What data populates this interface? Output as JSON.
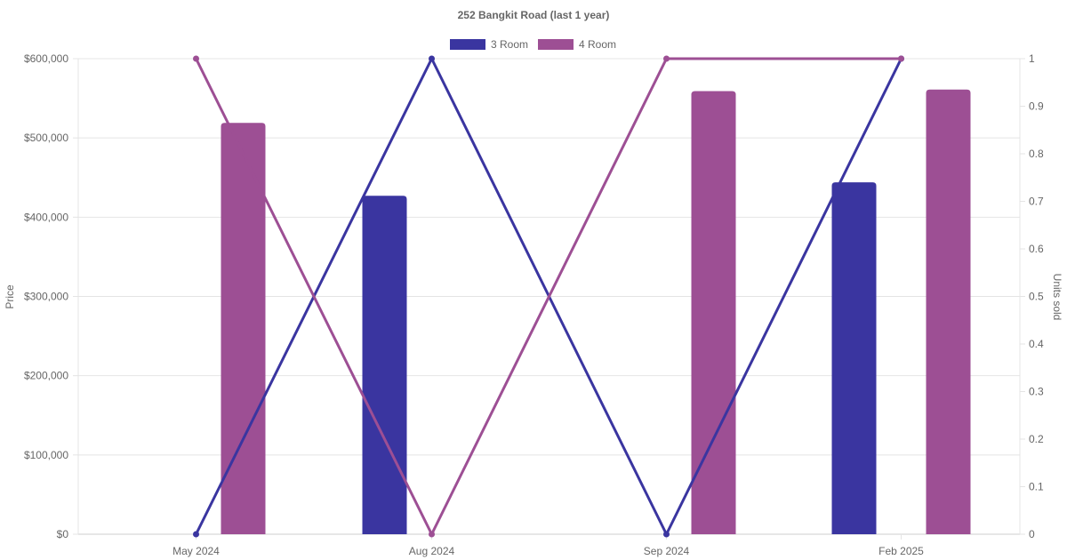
{
  "chart_data": {
    "type": "bar",
    "title": "252 Bangkit Road (last 1 year)",
    "categories": [
      "May 2024",
      "Aug 2024",
      "Sep 2024",
      "Feb 2025"
    ],
    "y_left": {
      "label": "Price",
      "range": [
        0,
        600000
      ],
      "ticks": [
        "$0",
        "$100,000",
        "$200,000",
        "$300,000",
        "$400,000",
        "$500,000",
        "$600,000"
      ]
    },
    "y_right": {
      "label": "Units sold",
      "range": [
        0,
        1
      ],
      "ticks": [
        "0",
        "0.1",
        "0.2",
        "0.3",
        "0.4",
        "0.5",
        "0.6",
        "0.7",
        "0.8",
        "0.9",
        "1"
      ]
    },
    "grid": true,
    "legend": {
      "position": "top",
      "items": [
        {
          "name": "3 Room",
          "color": "#3a35a0"
        },
        {
          "name": "4 Room",
          "color": "#9d4f94"
        }
      ]
    },
    "bar_series": [
      {
        "name": "3 Room",
        "color": "#3a35a0",
        "axis": "left",
        "values": [
          null,
          427000,
          null,
          444000
        ]
      },
      {
        "name": "4 Room",
        "color": "#9d4f94",
        "axis": "left",
        "values": [
          519000,
          null,
          559000,
          561000
        ]
      }
    ],
    "line_series": [
      {
        "name": "3 Room",
        "color": "#3a35a0",
        "axis": "right",
        "values": [
          0,
          1,
          0,
          1
        ]
      },
      {
        "name": "4 Room",
        "color": "#9d4f94",
        "axis": "right",
        "values": [
          1,
          0,
          1,
          1
        ]
      }
    ]
  }
}
